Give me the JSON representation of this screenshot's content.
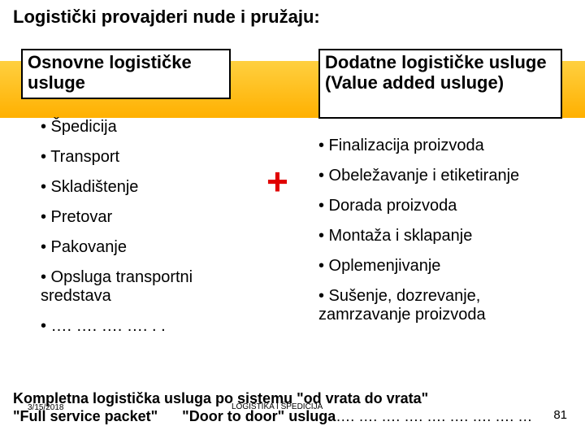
{
  "colors": {
    "band_top": "#ffd040",
    "band_bottom": "#ffb000",
    "plus": "#e00000",
    "text": "#000000",
    "bg": "#ffffff"
  },
  "title": "Logistički provajderi  nude i pružaju:",
  "left_box": "Osnovne logističke usluge",
  "right_box": "Dodatne logističke usluge   (Value added usluge)",
  "plus": "+",
  "left_items": [
    "• Špedicija",
    "• Transport",
    "• Skladištenje",
    "• Pretovar",
    "• Pakovanje",
    "• Opsluga transportni sredstava",
    "• …. …. …. …. . ."
  ],
  "right_items": [
    "• Finalizacija proizvoda",
    "• Obeležavanje i etiketiranje",
    "• Dorada proizvoda",
    "• Montaža i sklapanje",
    "• Oplemenjivanje",
    "• Sušenje, dozrevanje, zamrzavanje  proizvoda"
  ],
  "footer_line1": "Kompletna logistička usluga po sistemu \"od vrata do vrata\"",
  "footer_packet": "\"Full service packet\"",
  "footer_door": "\"Door to door\" usluga",
  "footer_dots": "…. …. …. …. …. …. …. …. …",
  "meta_date": "3/15/2018",
  "meta_center": "LOGISTIKA I ŠPEDICIJA",
  "page_number": "81"
}
